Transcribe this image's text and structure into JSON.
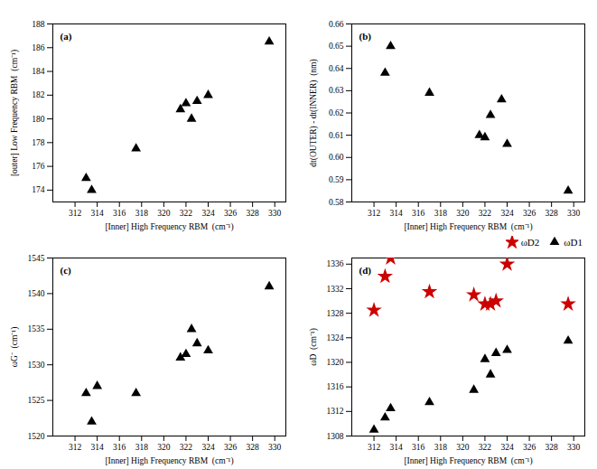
{
  "chart_data": [
    {
      "type": "scatter",
      "annotation": "(a)",
      "x_label": "[Inner] High Frequency RBM  (cm⁻¹)",
      "y_label": "[outer] Low Frequency RBM  (cm⁻¹)",
      "series": [
        {
          "color": "black",
          "marker": "triangle",
          "x": [
            313.0,
            313.5,
            317.5,
            321.5,
            322.0,
            322.5,
            323.0,
            324.0,
            329.5
          ],
          "values": [
            175.0,
            174.0,
            177.5,
            180.8,
            181.3,
            180.0,
            181.5,
            182.0,
            186.5
          ]
        }
      ],
      "xlim": [
        310,
        331
      ],
      "xticks": [
        312,
        314,
        316,
        318,
        320,
        322,
        324,
        326,
        328,
        330
      ],
      "ylim": [
        173,
        188
      ],
      "yticks": [
        174,
        176,
        178,
        180,
        182,
        184,
        186,
        188
      ]
    },
    {
      "type": "scatter",
      "annotation": "(b)",
      "x_label": "[Inner] High Frequency RBM  (cm⁻¹)",
      "y_label": "dt(OUTER) - dt(INNER)  (nm)",
      "series": [
        {
          "color": "black",
          "marker": "triangle",
          "x": [
            313.0,
            313.5,
            317.0,
            321.5,
            322.0,
            322.5,
            323.5,
            324.0,
            329.5
          ],
          "values": [
            0.638,
            0.65,
            0.629,
            0.61,
            0.609,
            0.619,
            0.626,
            0.606,
            0.585
          ]
        }
      ],
      "xlim": [
        310,
        331
      ],
      "xticks": [
        312,
        314,
        316,
        318,
        320,
        322,
        324,
        326,
        328,
        330
      ],
      "ylim": [
        0.58,
        0.66
      ],
      "yticks": [
        0.58,
        0.59,
        {
          "value": 0.6,
          "label": "0.60"
        },
        0.61,
        0.62,
        0.63,
        0.64,
        0.65,
        0.66
      ]
    },
    {
      "type": "scatter",
      "annotation": "(c)",
      "x_label": "[Inner] High Frequency RBM  (cm⁻¹)",
      "y_label": "ωG⁻  (cm⁻¹)",
      "series": [
        {
          "color": "black",
          "marker": "triangle",
          "x": [
            313.0,
            313.5,
            314.0,
            317.5,
            321.5,
            322.0,
            322.5,
            323.0,
            324.0,
            329.5
          ],
          "values": [
            1526.0,
            1522.0,
            1527.0,
            1526.0,
            1531.0,
            1531.5,
            1535.0,
            1533.0,
            1532.0,
            1541.0
          ]
        }
      ],
      "xlim": [
        310,
        331
      ],
      "xticks": [
        312,
        314,
        316,
        318,
        320,
        322,
        324,
        326,
        328,
        330
      ],
      "ylim": [
        1520,
        1545
      ],
      "yticks": [
        1520,
        1525,
        1530,
        1535,
        1540,
        1545
      ]
    },
    {
      "type": "scatter",
      "annotation": "(d)",
      "x_label": "[Inner] High Frequency RBM  (cm⁻¹)",
      "y_label": "ωD  (cm⁻¹)",
      "series": [
        {
          "name": "ωD2",
          "color": "#cc0000",
          "marker": "star",
          "x": [
            312.0,
            313.0,
            313.5,
            317.0,
            321.0,
            322.0,
            322.5,
            323.0,
            324.0,
            329.5
          ],
          "values": [
            1328.5,
            1334.0,
            1337.0,
            1331.5,
            1331.0,
            1329.5,
            1329.5,
            1330.0,
            1336.0,
            1329.5
          ]
        },
        {
          "name": "ωD1",
          "color": "black",
          "marker": "triangle",
          "x": [
            312.0,
            313.0,
            313.5,
            317.0,
            321.0,
            322.0,
            322.5,
            323.0,
            324.0,
            329.5
          ],
          "values": [
            1309.0,
            1311.0,
            1312.5,
            1313.5,
            1315.5,
            1320.5,
            1318.0,
            1321.5,
            1322.0,
            1323.5
          ]
        }
      ],
      "legend": "upper right",
      "xlim": [
        310,
        331
      ],
      "xticks": [
        312,
        314,
        316,
        318,
        320,
        322,
        324,
        326,
        328,
        330
      ],
      "ylim": [
        1308,
        1337
      ],
      "yticks": [
        1308,
        1312,
        1316,
        1320,
        1324,
        1328,
        1332,
        1336
      ]
    }
  ]
}
